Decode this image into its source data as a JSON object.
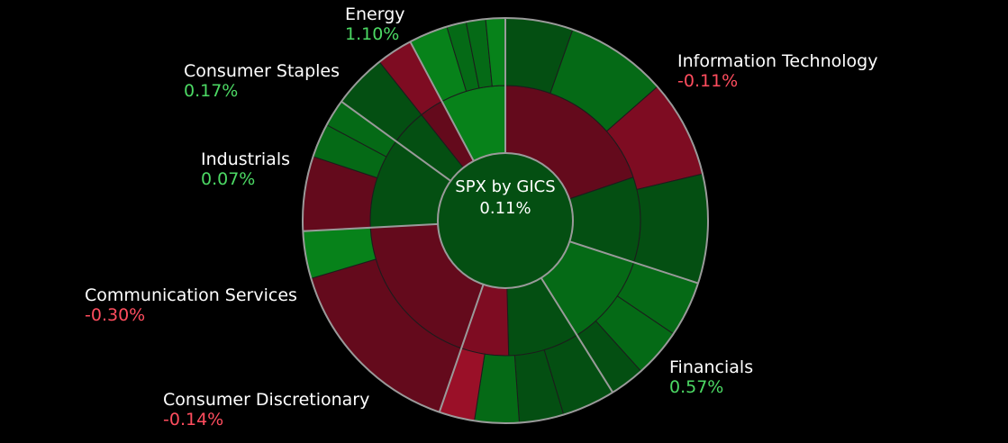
{
  "colors": {
    "background": "#000000",
    "positive_text": "#4cd964",
    "negative_text": "#ff4d5e",
    "separator": "#9a9a9a"
  },
  "chart_data": {
    "type": "sunburst",
    "title": "SPX by GICS",
    "center_value": "0.11%",
    "sectors": [
      {
        "name": "Information Technology",
        "change": "-0.11%",
        "inner": [
          {
            "size": 66,
            "tone": "red3"
          },
          {
            "size": 34,
            "tone": "green3"
          }
        ],
        "outer": [
          {
            "size": 18,
            "tone": "green3"
          },
          {
            "size": 27,
            "tone": "green2"
          },
          {
            "size": 26,
            "tone": "red2"
          },
          {
            "size": 29,
            "tone": "green3"
          }
        ]
      },
      {
        "name": "Financials",
        "change": "0.57%",
        "inner": [
          {
            "size": 100,
            "tone": "green2"
          }
        ],
        "outer": [
          {
            "size": 40,
            "tone": "green2"
          },
          {
            "size": 35,
            "tone": "green2"
          },
          {
            "size": 25,
            "tone": "green3"
          }
        ]
      },
      {
        "name": "Consumer Discretionary",
        "change": "-0.14%",
        "inner": [
          {
            "size": 60,
            "tone": "green3"
          },
          {
            "size": 40,
            "tone": "red2"
          }
        ],
        "outer": [
          {
            "size": 30,
            "tone": "green3"
          },
          {
            "size": 25,
            "tone": "green3"
          },
          {
            "size": 25,
            "tone": "green2"
          },
          {
            "size": 20,
            "tone": "red1"
          }
        ]
      },
      {
        "name": "Communication Services",
        "change": "-0.30%",
        "inner": [
          {
            "size": 100,
            "tone": "red3"
          }
        ],
        "outer": [
          {
            "size": 80,
            "tone": "red3"
          },
          {
            "size": 20,
            "tone": "green1"
          }
        ]
      },
      {
        "name": "Industrials",
        "change": "0.07%",
        "inner": [
          {
            "size": 100,
            "tone": "green3"
          }
        ],
        "outer": [
          {
            "size": 55,
            "tone": "red3"
          },
          {
            "size": 25,
            "tone": "green2"
          },
          {
            "size": 20,
            "tone": "green2"
          }
        ]
      },
      {
        "name": "Consumer Staples",
        "change": "0.17%",
        "inner": [
          {
            "size": 60,
            "tone": "green3"
          },
          {
            "size": 40,
            "tone": "red3"
          }
        ],
        "outer": [
          {
            "size": 60,
            "tone": "green3"
          },
          {
            "size": 40,
            "tone": "red2"
          }
        ]
      },
      {
        "name": "Energy",
        "change": "1.10%",
        "inner": [
          {
            "size": 100,
            "tone": "green1"
          }
        ],
        "outer": [
          {
            "size": 40,
            "tone": "green1"
          },
          {
            "size": 20,
            "tone": "green2"
          },
          {
            "size": 20,
            "tone": "green2"
          },
          {
            "size": 20,
            "tone": "green1"
          }
        ]
      }
    ]
  }
}
